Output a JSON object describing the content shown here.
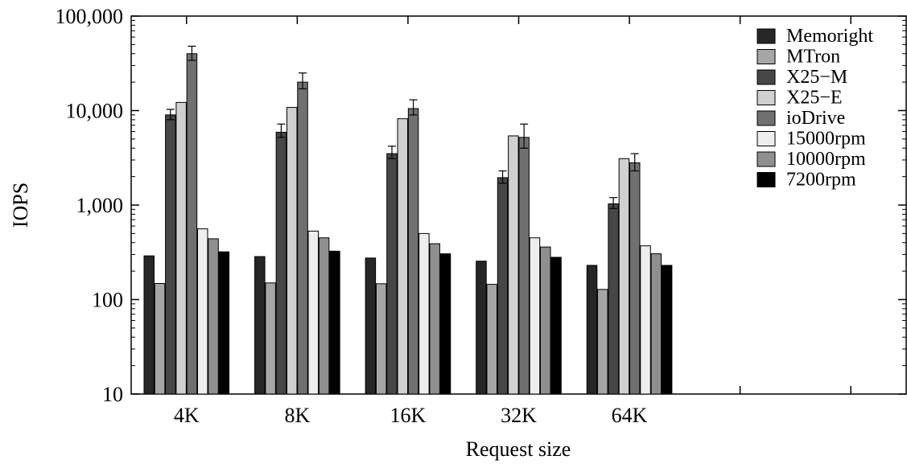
{
  "chart_data": {
    "type": "bar",
    "title": "",
    "xlabel": "Request size",
    "ylabel": "IOPS",
    "yscale": "log",
    "ylim": [
      10,
      100000
    ],
    "yticks": [
      10,
      100,
      1000,
      10000,
      100000
    ],
    "ytick_labels": [
      "10",
      "100",
      "1,000",
      "10,000",
      "100,000"
    ],
    "categories": [
      "4K",
      "8K",
      "16K",
      "32K",
      "64K"
    ],
    "legend_position": "top-right",
    "grid": false,
    "series": [
      {
        "name": "Memoright",
        "color": "#262626",
        "values": [
          290,
          285,
          275,
          255,
          230
        ],
        "error_bars": false
      },
      {
        "name": "MTron",
        "color": "#a6a6a6",
        "values": [
          148,
          150,
          147,
          145,
          128
        ],
        "error_bars": false
      },
      {
        "name": "X25−M",
        "color": "#474747",
        "values": [
          9000,
          5900,
          3500,
          1950,
          1030
        ],
        "error_bars": true,
        "error_high": [
          10300,
          7200,
          4200,
          2300,
          1200
        ],
        "error_low": [
          8000,
          5200,
          3100,
          1700,
          920
        ]
      },
      {
        "name": "X25−E",
        "color": "#d0d0d0",
        "values": [
          12200,
          10800,
          8200,
          5400,
          3100
        ],
        "error_bars": false
      },
      {
        "name": "ioDrive",
        "color": "#707070",
        "values": [
          40000,
          20000,
          10500,
          5200,
          2800
        ],
        "error_bars": true,
        "error_high": [
          48000,
          25000,
          13000,
          7200,
          3500
        ],
        "error_low": [
          34000,
          17000,
          9000,
          4000,
          2300
        ]
      },
      {
        "name": "15000rpm",
        "color": "#eeeeee",
        "values": [
          560,
          530,
          500,
          450,
          370
        ],
        "error_bars": false
      },
      {
        "name": "10000rpm",
        "color": "#8f8f8f",
        "values": [
          440,
          450,
          390,
          360,
          305
        ],
        "error_bars": false
      },
      {
        "name": "7200rpm",
        "color": "#000000",
        "values": [
          320,
          325,
          305,
          280,
          230
        ],
        "error_bars": false
      }
    ]
  }
}
